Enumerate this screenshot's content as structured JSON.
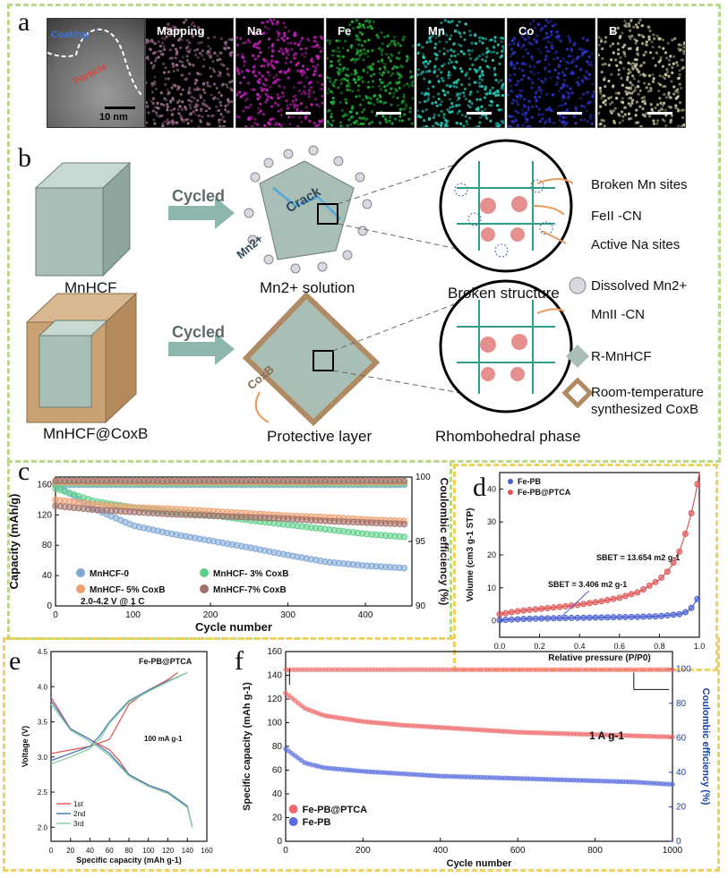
{
  "panel_letters": {
    "a": "a",
    "b": "b",
    "c": "c",
    "d": "d",
    "e": "e",
    "f": "f"
  },
  "panel_a": {
    "tem": {
      "coating": "Coating",
      "particle": "Particle",
      "scale": "10 nm"
    },
    "tiles": [
      {
        "label": "Mapping",
        "color": "#9a6d8a"
      },
      {
        "label": "Na",
        "color": "#c21fb8"
      },
      {
        "label": "Fe",
        "color": "#1fae3a"
      },
      {
        "label": "Mn",
        "color": "#25c7b6"
      },
      {
        "label": "Co",
        "color": "#2c32c8"
      },
      {
        "label": "B",
        "color": "#c9c7a0"
      }
    ]
  },
  "panel_b": {
    "cycled": "Cycled",
    "crack": "Crack",
    "mn_ion": "Mn2+",
    "mnhcf": "MnHCF",
    "mn_solution": "Mn2+ solution",
    "broken_structure": "Broken structure",
    "broken_mn_sites": "Broken Mn sites",
    "fe_cn": "FeII -CN",
    "active_na": "Active Na sites",
    "dissolved": "Dissolved  Mn2+",
    "mnhcf_cob": "MnHCF@CoxB",
    "cob": "CoxB",
    "protective": "Protective layer",
    "rhombohedral": "Rhombohedral phase",
    "mn_cn": "MnII -CN",
    "r_mnhcf": "R-MnHCF",
    "room_temp_1": "Room-temperature",
    "room_temp_2": "synthesized CoxB"
  },
  "chart_data": [
    {
      "id": "c",
      "type": "scatter",
      "xlabel": "Cycle number",
      "ylabel": "Capacity (mAh/g)",
      "y2label": "Coulombic efficiency (%)",
      "xlim": [
        0,
        460
      ],
      "ylim": [
        0,
        170
      ],
      "y2lim": [
        90,
        100
      ],
      "xticks": [
        0,
        100,
        200,
        300,
        400
      ],
      "yticks": [
        0,
        40,
        80,
        120,
        160
      ],
      "y2ticks": [
        90,
        95,
        100
      ],
      "legend_position": "bottom-left",
      "condition": "2.0-4.2 V @ 1 C",
      "series": [
        {
          "name": "MnHCF-0",
          "color": "#7fa6d6",
          "x": [
            0,
            50,
            100,
            150,
            200,
            250,
            300,
            350,
            400,
            450
          ],
          "values": [
            160,
            128,
            106,
            95,
            86,
            77,
            67,
            58,
            53,
            50
          ],
          "ce": 99.4
        },
        {
          "name": "MnHCF- 3% CoxB",
          "color": "#5ecf8a",
          "x": [
            0,
            50,
            100,
            150,
            200,
            250,
            300,
            350,
            400,
            450
          ],
          "values": [
            155,
            138,
            130,
            124,
            120,
            113,
            107,
            101,
            95,
            91
          ],
          "ce": 99.5
        },
        {
          "name": "MnHCF- 5% CoxB",
          "color": "#f0a070",
          "x": [
            0,
            50,
            100,
            150,
            200,
            250,
            300,
            350,
            400,
            450
          ],
          "values": [
            140,
            134,
            130,
            128,
            125,
            122,
            119,
            117,
            114,
            112
          ],
          "ce": 99.6
        },
        {
          "name": "MnHCF-7% CoxB",
          "color": "#a0706a",
          "x": [
            0,
            50,
            100,
            150,
            200,
            250,
            300,
            350,
            400,
            450
          ],
          "values": [
            132,
            127,
            124,
            121,
            119,
            117,
            115,
            112,
            110,
            108
          ],
          "ce": 99.7
        }
      ]
    },
    {
      "id": "d",
      "type": "line",
      "xlabel": "Relative pressure (P/P0)",
      "ylabel": "Volume (cm3 g-1 STP)",
      "xlim": [
        0,
        1
      ],
      "ylim": [
        -5,
        45
      ],
      "xticks": [
        0.0,
        0.2,
        0.4,
        0.6,
        0.8,
        1.0
      ],
      "yticks": [
        0,
        10,
        20,
        30,
        40
      ],
      "legend_position": "top-left",
      "annotations": [
        "SBET = 13.654 m2 g-1",
        "SBET = 3.406 m2 g-1"
      ],
      "series": [
        {
          "name": "Fe-PB",
          "color": "#4a5fd0",
          "x": [
            0,
            0.1,
            0.2,
            0.3,
            0.4,
            0.5,
            0.6,
            0.7,
            0.8,
            0.9,
            0.95,
            1.0
          ],
          "values": [
            0.2,
            0.5,
            0.7,
            0.8,
            0.9,
            1.0,
            1.1,
            1.2,
            1.4,
            2.0,
            3.0,
            7.5
          ]
        },
        {
          "name": "Fe-PB@PTCA",
          "color": "#e05555",
          "x": [
            0,
            0.1,
            0.2,
            0.3,
            0.4,
            0.5,
            0.6,
            0.7,
            0.8,
            0.85,
            0.9,
            0.95,
            0.98,
            1.0
          ],
          "values": [
            2,
            3,
            3.6,
            4.2,
            4.9,
            5.8,
            7,
            8.8,
            12.5,
            15.5,
            21,
            30,
            38,
            45
          ]
        }
      ]
    },
    {
      "id": "e",
      "type": "line",
      "title": "Fe-PB@PTCA",
      "xlabel": "Specific capacity (mAh g-1)",
      "ylabel": "Voltage (V)",
      "xlim": [
        0,
        160
      ],
      "ylim": [
        1.8,
        4.5
      ],
      "xticks": [
        0,
        20,
        40,
        60,
        80,
        100,
        120,
        140,
        160
      ],
      "yticks": [
        2.0,
        2.5,
        3.0,
        3.5,
        4.0,
        4.5
      ],
      "annotation": "100 mA g-1",
      "legend_position": "bottom-left",
      "series": [
        {
          "name": "1st",
          "color": "#e05a5a",
          "charge_x": [
            0,
            20,
            40,
            60,
            70,
            80,
            100,
            120,
            130
          ],
          "charge_y": [
            3.05,
            3.1,
            3.15,
            3.25,
            3.5,
            3.75,
            3.95,
            4.1,
            4.2
          ],
          "discharge_x": [
            0,
            20,
            40,
            60,
            70,
            80,
            100,
            120,
            140,
            145
          ],
          "discharge_y": [
            3.85,
            3.4,
            3.25,
            3.1,
            2.95,
            2.75,
            2.6,
            2.5,
            2.3,
            2.0
          ]
        },
        {
          "name": "2nd",
          "color": "#4a7ab8",
          "charge_x": [
            0,
            20,
            40,
            50,
            60,
            80,
            100,
            120,
            140
          ],
          "charge_y": [
            2.95,
            3.05,
            3.15,
            3.3,
            3.5,
            3.8,
            3.95,
            4.08,
            4.2
          ],
          "discharge_x": [
            0,
            20,
            40,
            60,
            80,
            100,
            120,
            140,
            145
          ],
          "discharge_y": [
            3.8,
            3.4,
            3.25,
            3.05,
            2.75,
            2.6,
            2.5,
            2.3,
            2.0
          ]
        },
        {
          "name": "3rd",
          "color": "#8bd0a5",
          "charge_x": [
            0,
            20,
            40,
            50,
            60,
            80,
            100,
            120,
            140
          ],
          "charge_y": [
            2.9,
            3.0,
            3.12,
            3.25,
            3.48,
            3.78,
            3.93,
            4.07,
            4.2
          ],
          "discharge_x": [
            0,
            20,
            40,
            60,
            80,
            100,
            120,
            140,
            145
          ],
          "discharge_y": [
            3.75,
            3.38,
            3.22,
            3.02,
            2.73,
            2.58,
            2.48,
            2.28,
            2.0
          ]
        }
      ]
    },
    {
      "id": "f",
      "type": "scatter",
      "xlabel": "Cycle number",
      "ylabel": "Specific capacity (mAh g-1)",
      "y2label": "Coulombic efficiency (%)",
      "xlim": [
        0,
        1000
      ],
      "ylim": [
        0,
        160
      ],
      "y2lim": [
        0,
        110
      ],
      "xticks": [
        0,
        200,
        400,
        600,
        800,
        1000
      ],
      "yticks": [
        0,
        20,
        40,
        60,
        80,
        100,
        120,
        140,
        160
      ],
      "y2ticks": [
        0,
        20,
        40,
        60,
        80,
        100
      ],
      "annotation": "1 A g-1",
      "legend_position": "bottom-left",
      "series": [
        {
          "name": "Fe-PB@PTCA",
          "color": "#f06a6a",
          "x": [
            0,
            50,
            100,
            200,
            300,
            400,
            500,
            600,
            700,
            800,
            900,
            1000
          ],
          "values": [
            125,
            112,
            106,
            101,
            98,
            96,
            94,
            92,
            91,
            90,
            89,
            88
          ],
          "ce": 99.5
        },
        {
          "name": "Fe-PB",
          "color": "#5a6ee0",
          "x": [
            0,
            50,
            100,
            200,
            300,
            400,
            500,
            600,
            700,
            800,
            900,
            1000
          ],
          "values": [
            78,
            66,
            62,
            59,
            57,
            55,
            54,
            53,
            52,
            51,
            50,
            48
          ],
          "ce": 99.0
        }
      ]
    }
  ]
}
